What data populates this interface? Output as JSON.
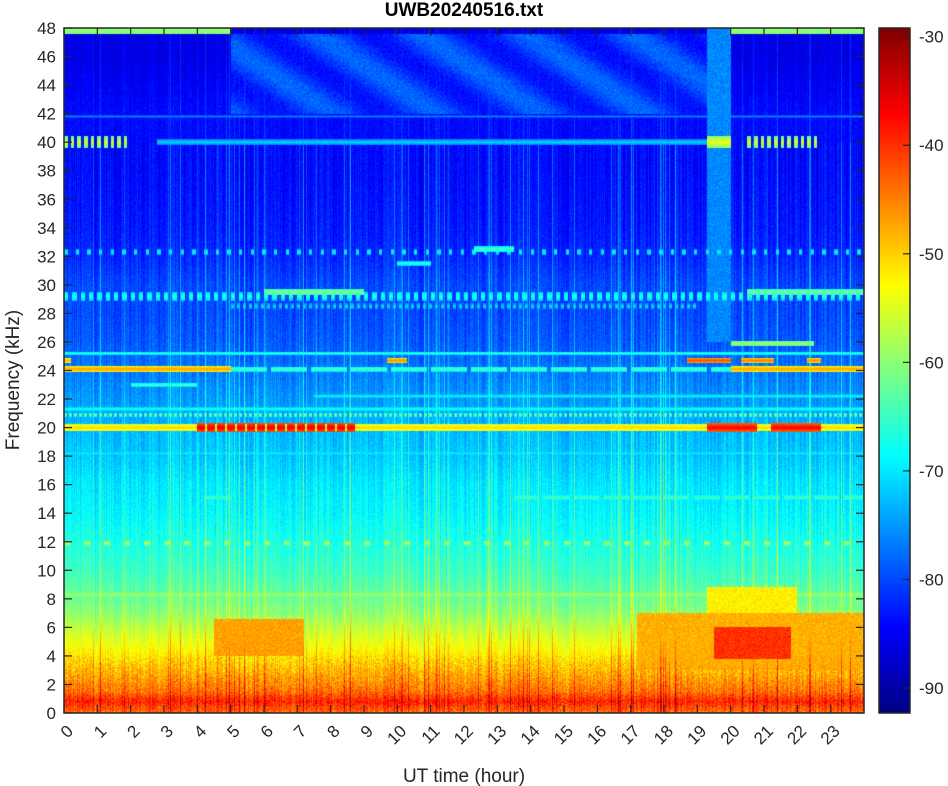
{
  "chart_data": {
    "type": "heatmap",
    "title": "UWB20240516.txt",
    "xlabel": "UT time (hour)",
    "ylabel": "Frequency (kHz)",
    "xlim": [
      0,
      24
    ],
    "ylim": [
      0,
      48
    ],
    "clim": [
      -92.3,
      -29.2
    ],
    "colormap": "jet",
    "x_ticks": [
      "0",
      "1",
      "2",
      "3",
      "4",
      "5",
      "6",
      "7",
      "8",
      "9",
      "10",
      "11",
      "12",
      "13",
      "14",
      "15",
      "16",
      "17",
      "18",
      "19",
      "20",
      "21",
      "22",
      "23"
    ],
    "y_ticks": [
      "0",
      "2",
      "4",
      "6",
      "8",
      "10",
      "12",
      "14",
      "16",
      "18",
      "20",
      "22",
      "24",
      "26",
      "28",
      "30",
      "32",
      "34",
      "36",
      "38",
      "40",
      "42",
      "44",
      "46",
      "48"
    ],
    "colorbar_ticks": [
      "-30",
      "-40",
      "-50",
      "-60",
      "-70",
      "-80",
      "-90"
    ],
    "colorbar_values": [
      -30,
      -40,
      -50,
      -60,
      -70,
      -80,
      -90
    ],
    "background_profile_db": {
      "freq_khz": [
        0,
        0.8,
        1.5,
        2.5,
        3.5,
        4.5,
        6,
        7,
        8,
        10,
        12,
        14,
        16,
        18,
        20,
        22,
        24,
        26,
        28,
        30,
        32,
        34,
        38,
        42,
        46,
        48
      ],
      "db": [
        -44,
        -39,
        -44,
        -47,
        -50,
        -53,
        -57,
        -60,
        -62,
        -65,
        -67,
        -69,
        -70,
        -72,
        -73,
        -75,
        -77,
        -79,
        -80,
        -80,
        -82,
        -83,
        -84,
        -84,
        -86,
        -86
      ]
    },
    "regions": [
      {
        "name": "low-band-boost-a",
        "t": [
          4.5,
          7.2
        ],
        "f": [
          4,
          6.6
        ],
        "db": -47
      },
      {
        "name": "low-band-boost-b",
        "t": [
          17.2,
          24
        ],
        "f": [
          3,
          7
        ],
        "db": -48
      },
      {
        "name": "low-band-boost-c",
        "t": [
          19.5,
          21.8
        ],
        "f": [
          3.8,
          6
        ],
        "db": -40
      },
      {
        "name": "low-band-boost-d",
        "t": [
          19.3,
          22
        ],
        "f": [
          6,
          8.8
        ],
        "db": -52
      },
      {
        "name": "upper-band-wave",
        "t": [
          5,
          19.3
        ],
        "f": [
          42,
          47.6
        ],
        "db": -81
      },
      {
        "name": "column-19h",
        "t": [
          19.3,
          20
        ],
        "f": [
          26,
          48
        ],
        "db": -76
      },
      {
        "name": "top-band-a",
        "t": [
          0,
          5
        ],
        "f": [
          47.6,
          48
        ],
        "db": -60
      },
      {
        "name": "top-band-b",
        "t": [
          20,
          24
        ],
        "f": [
          47.6,
          48
        ],
        "db": -60
      }
    ],
    "lines": [
      {
        "name": "20kHz",
        "f": 20,
        "w": 0.5,
        "t": [
          0,
          24
        ],
        "db": -50
      },
      {
        "name": "20kHz-strong-a",
        "f": 20,
        "w": 0.6,
        "t": [
          4,
          8.8
        ],
        "db": -36,
        "period": 0.3,
        "duty": 0.8
      },
      {
        "name": "20kHz-strong-b",
        "f": 20,
        "w": 0.6,
        "t": [
          19.3,
          20.8
        ],
        "db": -37
      },
      {
        "name": "20kHz-strong-c",
        "f": 20,
        "w": 0.6,
        "t": [
          21.2,
          22.7
        ],
        "db": -37
      },
      {
        "name": "24kHz-a",
        "f": 24.1,
        "w": 0.45,
        "t": [
          0,
          5
        ],
        "db": -47
      },
      {
        "name": "24kHz-b",
        "f": 24.1,
        "w": 0.45,
        "t": [
          20,
          24
        ],
        "db": -47
      },
      {
        "name": "24kHz-c",
        "f": 24.1,
        "w": 0.35,
        "t": [
          5,
          20
        ],
        "db": -64,
        "period": 1.2,
        "duty": 0.9
      },
      {
        "name": "24.7kHz-a",
        "f": 24.7,
        "w": 0.4,
        "t": [
          0,
          0.2
        ],
        "db": -48
      },
      {
        "name": "24.7kHz-b",
        "f": 24.7,
        "w": 0.4,
        "t": [
          9.7,
          10.3
        ],
        "db": -46
      },
      {
        "name": "24.7kHz-c",
        "f": 24.7,
        "w": 0.4,
        "t": [
          18.7,
          20
        ],
        "db": -42
      },
      {
        "name": "24.7kHz-d",
        "f": 24.7,
        "w": 0.4,
        "t": [
          20.3,
          21.3
        ],
        "db": -45
      },
      {
        "name": "24.7kHz-e",
        "f": 24.7,
        "w": 0.4,
        "t": [
          22.3,
          22.7
        ],
        "db": -46
      },
      {
        "name": "25.2kHz",
        "f": 25.2,
        "w": 0.25,
        "t": [
          0,
          24
        ],
        "db": -66
      },
      {
        "name": "25.9kHz",
        "f": 25.9,
        "w": 0.35,
        "t": [
          20,
          22.5
        ],
        "db": -58
      },
      {
        "name": "23kHz",
        "f": 23,
        "w": 0.25,
        "t": [
          2,
          4
        ],
        "db": -64
      },
      {
        "name": "22.2kHz",
        "f": 22.2,
        "w": 0.25,
        "t": [
          7.5,
          24
        ],
        "db": -68
      },
      {
        "name": "21.3kHz",
        "f": 21.3,
        "w": 0.3,
        "t": [
          0,
          24
        ],
        "db": -67
      },
      {
        "name": "21kHz",
        "f": 20.9,
        "w": 0.3,
        "t": [
          0,
          24
        ],
        "db": -62,
        "period": 0.15,
        "duty": 0.6
      },
      {
        "name": "18.2kHz",
        "f": 18.2,
        "w": 0.3,
        "t": [
          0,
          24
        ],
        "db": -69
      },
      {
        "name": "16.4kHz",
        "f": 16.4,
        "w": 0.25,
        "t": [
          0,
          24
        ],
        "db": -71
      },
      {
        "name": "15kHz-a",
        "f": 15.1,
        "w": 0.35,
        "t": [
          13.5,
          24
        ],
        "db": -64,
        "period": 0.9,
        "duty": 0.85
      },
      {
        "name": "15kHz-b",
        "f": 15.1,
        "w": 0.35,
        "t": [
          4.2,
          5
        ],
        "db": -64
      },
      {
        "name": "12kHz",
        "f": 11.9,
        "w": 0.35,
        "t": [
          0,
          24
        ],
        "db": -57,
        "period": 0.6,
        "duty": 0.3
      },
      {
        "name": "8.3kHz",
        "f": 8.3,
        "w": 0.35,
        "t": [
          0,
          24
        ],
        "db": -58
      },
      {
        "name": "29kHz",
        "f": 29.2,
        "w": 0.6,
        "t": [
          0,
          24
        ],
        "db": -66,
        "period": 0.25,
        "duty": 0.5
      },
      {
        "name": "29.5kHz",
        "f": 29.5,
        "w": 0.4,
        "t": [
          6,
          9
        ],
        "db": -60
      },
      {
        "name": "29.5kHz-b",
        "f": 29.5,
        "w": 0.4,
        "t": [
          20.5,
          24
        ],
        "db": -61
      },
      {
        "name": "28.5kHz",
        "f": 28.5,
        "w": 0.4,
        "t": [
          5,
          19
        ],
        "db": -70,
        "period": 0.18,
        "duty": 0.5
      },
      {
        "name": "32.3kHz",
        "f": 32.3,
        "w": 0.4,
        "t": [
          0,
          24
        ],
        "db": -68,
        "period": 0.35,
        "duty": 0.3
      },
      {
        "name": "32.5kHz-b",
        "f": 32.5,
        "w": 0.4,
        "t": [
          12.3,
          13.5
        ],
        "db": -64
      },
      {
        "name": "31.5kHz",
        "f": 31.5,
        "w": 0.3,
        "t": [
          10,
          11
        ],
        "db": -66
      },
      {
        "name": "40kHz-a",
        "f": 40,
        "w": 0.8,
        "t": [
          0,
          1.9
        ],
        "db": -56,
        "period": 0.2,
        "duty": 0.55
      },
      {
        "name": "40kHz-b",
        "f": 40,
        "w": 0.4,
        "t": [
          2.8,
          19.3
        ],
        "db": -71
      },
      {
        "name": "40kHz-c",
        "f": 40,
        "w": 0.8,
        "t": [
          19.3,
          20
        ],
        "db": -54
      },
      {
        "name": "40kHz-d",
        "f": 40,
        "w": 0.8,
        "t": [
          20.5,
          22.6
        ],
        "db": -56,
        "period": 0.2,
        "duty": 0.55
      },
      {
        "name": "41.8kHz",
        "f": 41.8,
        "w": 0.2,
        "t": [
          0,
          24
        ],
        "db": -76
      }
    ]
  }
}
